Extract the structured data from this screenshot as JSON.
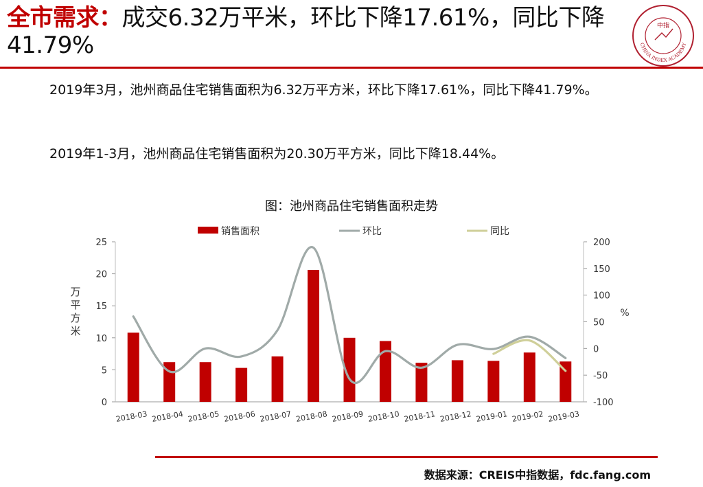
{
  "header": {
    "title_highlight": "全市需求：",
    "title_rest": "成交6.32万平米，环比下降17.61%，同比下降41.79%",
    "logo_center_text": "中指",
    "logo_ring_text": "CHINA INDEX ACADEMY"
  },
  "body": {
    "paragraph_1": "2019年3月，池州商品住宅销售面积为6.32万平方米，环比下降17.61%，同比下降41.79%。",
    "paragraph_2": "2019年1-3月，池州商品住宅销售面积为20.30万平方米，同比下降18.44%。"
  },
  "chart_title": "图：池州商品住宅销售面积走势",
  "chart_data": {
    "type": "bar",
    "categories": [
      "2018-03",
      "2018-04",
      "2018-05",
      "2018-06",
      "2018-07",
      "2018-08",
      "2018-09",
      "2018-10",
      "2018-11",
      "2018-12",
      "2019-01",
      "2019-02",
      "2019-03"
    ],
    "series": [
      {
        "name": "销售面积",
        "type": "bar",
        "axis": "left",
        "color": "#c00000",
        "values": [
          10.8,
          6.2,
          6.2,
          5.3,
          7.1,
          20.6,
          10.0,
          9.5,
          6.1,
          6.5,
          6.4,
          7.7,
          6.3
        ]
      },
      {
        "name": "环比",
        "type": "line",
        "axis": "right",
        "color": "#a0aaa8",
        "values": [
          60,
          -43,
          0,
          -15,
          34,
          189,
          -57,
          -5,
          -36,
          7,
          -1,
          22,
          -18
        ]
      },
      {
        "name": "同比",
        "type": "line",
        "axis": "right",
        "color": "#cfcf99",
        "values": [
          null,
          null,
          null,
          null,
          null,
          null,
          null,
          null,
          null,
          null,
          -10,
          15,
          -42
        ]
      }
    ],
    "ylabel": "万平方米",
    "ylim": [
      0,
      25
    ],
    "yticks": [
      0,
      5,
      10,
      15,
      20,
      25
    ],
    "y2label": "%",
    "y2lim": [
      -100,
      200
    ],
    "y2ticks": [
      -100,
      -50,
      0,
      50,
      100,
      150,
      200
    ],
    "legend_position": "top",
    "grid": false
  },
  "footer": {
    "source": "数据来源：CREIS中指数据，fdc.fang.com"
  }
}
